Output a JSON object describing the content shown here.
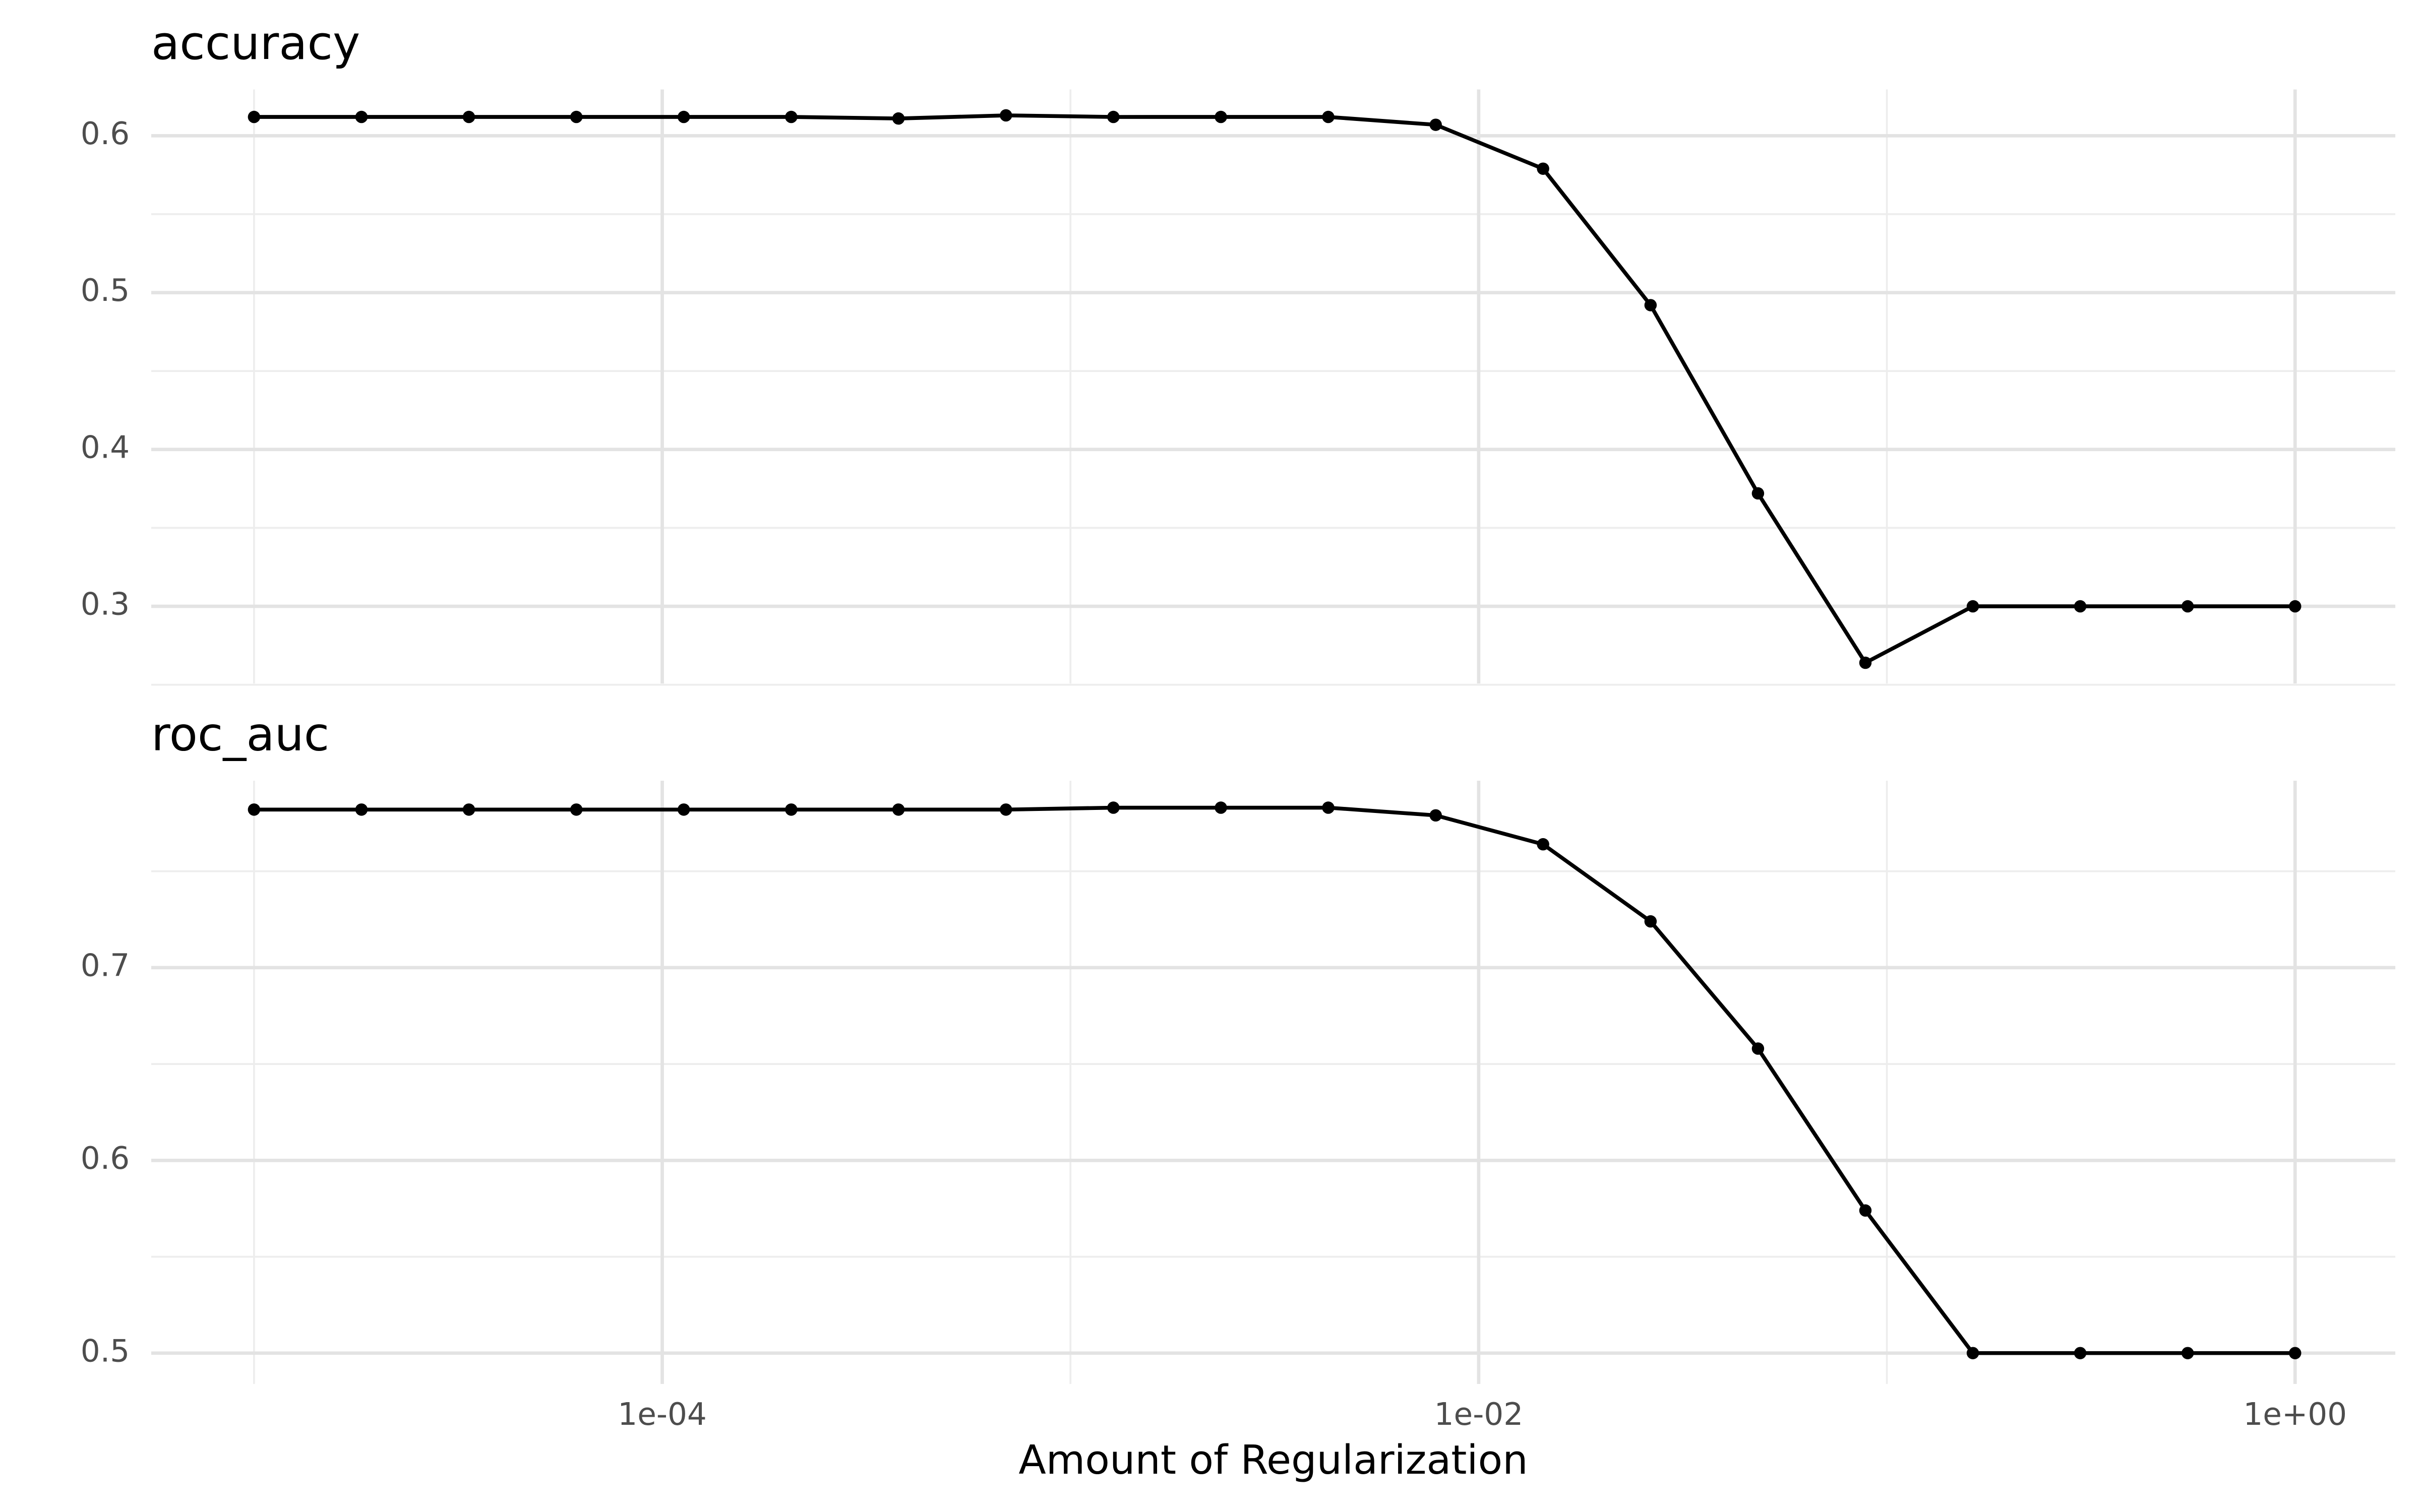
{
  "chart_data": {
    "type": "line",
    "log_x": true,
    "color": "#000000",
    "grid": true,
    "xlabel": "Amount of Regularization",
    "x": [
      1e-05,
      1.833e-05,
      3.36e-05,
      6.16e-05,
      0.0001129,
      0.000207,
      0.000379,
      0.000695,
      0.001274,
      0.002336,
      0.004281,
      0.007848,
      0.01438,
      0.02637,
      0.04833,
      0.08859,
      0.1624,
      0.2976,
      0.5456,
      1
    ],
    "xlim": [
      5.6e-06,
      1.76
    ],
    "xticks": [
      {
        "value": 0.0001,
        "label": "1e-04"
      },
      {
        "value": 0.01,
        "label": "1e-02"
      },
      {
        "value": 1,
        "label": "1e+00"
      }
    ],
    "minor_xticks": [
      1e-05,
      0.001,
      0.1
    ],
    "panels": [
      {
        "title": "accuracy",
        "values": [
          0.612,
          0.612,
          0.612,
          0.612,
          0.612,
          0.612,
          0.611,
          0.613,
          0.612,
          0.612,
          0.612,
          0.607,
          0.579,
          0.492,
          0.372,
          0.264,
          0.3,
          0.3,
          0.3,
          0.3
        ],
        "ylim": [
          0.2508,
          0.6295
        ],
        "yticks": [
          0.3,
          0.4,
          0.5,
          0.6
        ],
        "minor_yticks": [
          0.25,
          0.35,
          0.45,
          0.55
        ]
      },
      {
        "title": "roc_auc",
        "values": [
          0.782,
          0.782,
          0.782,
          0.782,
          0.782,
          0.782,
          0.782,
          0.782,
          0.783,
          0.783,
          0.783,
          0.779,
          0.764,
          0.724,
          0.658,
          0.574,
          0.5,
          0.5,
          0.5,
          0.5
        ],
        "ylim": [
          0.484,
          0.797
        ],
        "yticks": [
          0.5,
          0.6,
          0.7
        ],
        "minor_yticks": [
          0.55,
          0.65,
          0.75
        ]
      }
    ]
  }
}
